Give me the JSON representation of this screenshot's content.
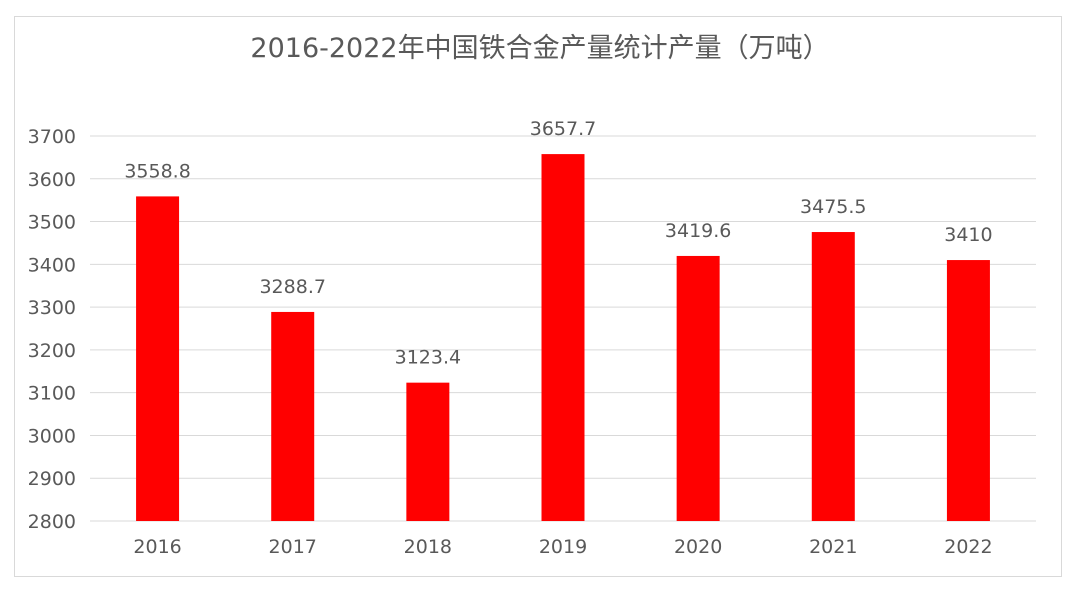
{
  "chart_data": {
    "type": "bar",
    "title": "2016-2022年中国铁合金产量统计产量（万吨）",
    "categories": [
      "2016",
      "2017",
      "2018",
      "2019",
      "2020",
      "2021",
      "2022"
    ],
    "values": [
      3558.8,
      3288.7,
      3123.4,
      3657.7,
      3419.6,
      3475.5,
      3410
    ],
    "value_labels": [
      "3558.8",
      "3288.7",
      "3123.4",
      "3657.7",
      "3419.6",
      "3475.5",
      "3410"
    ],
    "ylim": [
      2800,
      3700
    ],
    "yticks": [
      "2800",
      "2900",
      "3000",
      "3100",
      "3200",
      "3300",
      "3400",
      "3500",
      "3600",
      "3700"
    ],
    "xlabel": "",
    "ylabel": "",
    "grid": true,
    "bar_color": "#ff0000"
  }
}
